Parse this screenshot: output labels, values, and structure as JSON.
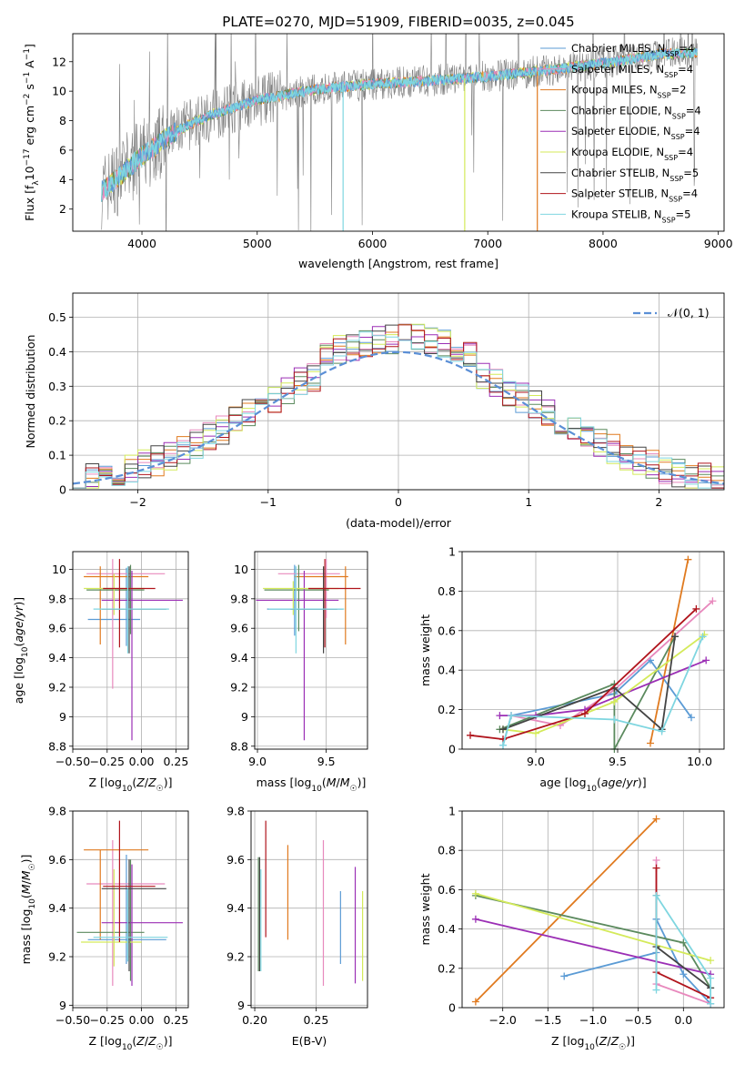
{
  "figure_title": "PLATE=0270, MJD=51909, FIBERID=0035, z=0.045",
  "colors": {
    "ch_miles": "#5b9bd5",
    "sa_miles": "#e889bd",
    "kr_miles": "#e07a1f",
    "ch_elodie": "#5b8a5e",
    "sa_elodie": "#9b2fb5",
    "kr_elodie": "#d4ea5a",
    "ch_stelib": "#444444",
    "sa_stelib": "#b0141c",
    "kr_stelib": "#7fd6e0",
    "gauss": "#5b8fd6",
    "data": "#808080"
  },
  "chart_data": [
    {
      "id": "spectrum",
      "type": "line",
      "title": "PLATE=0270, MJD=51909, FIBERID=0035, z=0.045",
      "xlabel": "wavelength [Angstrom, rest frame]",
      "ylabel": "Flux [f_λ10^-17 erg cm^-2 s^-1 A^-1]",
      "xlim": [
        3400,
        9050
      ],
      "ylim": [
        0.5,
        13.9
      ],
      "xticks": [
        4000,
        5000,
        6000,
        7000,
        8000,
        9000
      ],
      "yticks": [
        2,
        4,
        6,
        8,
        10,
        12
      ],
      "continuum": [
        [
          3650,
          3.2
        ],
        [
          3800,
          4.2
        ],
        [
          4000,
          5.6
        ],
        [
          4300,
          7.3
        ],
        [
          4600,
          8.4
        ],
        [
          5000,
          9.4
        ],
        [
          5500,
          10.1
        ],
        [
          6000,
          10.5
        ],
        [
          6500,
          10.7
        ],
        [
          7000,
          11.0
        ],
        [
          7500,
          11.4
        ],
        [
          8000,
          11.9
        ],
        [
          8500,
          12.5
        ],
        [
          8820,
          12.6
        ]
      ],
      "legend": [
        {
          "label": "Chabrier MILES, N_SSP=4",
          "color_key": "ch_miles"
        },
        {
          "label": "Salpeter MILES, N_SSP=4",
          "color_key": "sa_miles"
        },
        {
          "label": "Kroupa MILES, N_SSP=2",
          "color_key": "kr_miles"
        },
        {
          "label": "Chabrier ELODIE, N_SSP=4",
          "color_key": "ch_elodie"
        },
        {
          "label": "Salpeter ELODIE, N_SSP=4",
          "color_key": "sa_elodie"
        },
        {
          "label": "Kroupa ELODIE, N_SSP=4",
          "color_key": "kr_elodie"
        },
        {
          "label": "Chabrier STELIB, N_SSP=5",
          "color_key": "ch_stelib"
        },
        {
          "label": "Salpeter STELIB, N_SSP=4",
          "color_key": "sa_stelib"
        },
        {
          "label": "Kroupa STELIB, N_SSP=5",
          "color_key": "kr_stelib"
        }
      ]
    },
    {
      "id": "residuals",
      "type": "step-histogram",
      "xlabel": "(data-model)/error",
      "ylabel": "Normed distribution",
      "xlim": [
        -2.5,
        2.5
      ],
      "ylim": [
        0,
        0.57
      ],
      "xticks": [
        -2,
        -1,
        0,
        1,
        2
      ],
      "yticks": [
        0.0,
        0.1,
        0.2,
        0.3,
        0.4,
        0.5
      ],
      "legend_label": "N(0,1)",
      "bin_width": 0.1
    },
    {
      "id": "age_vs_Z",
      "type": "errorbar",
      "xlabel": "Z [log10(Z/Z☉)]",
      "ylabel": "age  [log10(age/yr)]",
      "xlim": [
        -0.5,
        0.34
      ],
      "ylim": [
        8.78,
        10.12
      ],
      "xticks": [
        -0.5,
        -0.25,
        0.0,
        0.25
      ],
      "xticklabels": [
        "−0.50",
        "−0.25",
        "0.00",
        "0.25"
      ],
      "yticks": [
        8.8,
        9.0,
        9.2,
        9.4,
        9.6,
        9.8,
        10.0
      ],
      "points": [
        {
          "c": "ch_miles",
          "x": -0.11,
          "xerr": [
            0.28,
            0.1
          ],
          "y": 9.66,
          "yerr": [
            0.18,
            0.35
          ]
        },
        {
          "c": "sa_miles",
          "x": -0.21,
          "xerr": [
            0.19,
            0.38
          ],
          "y": 9.97,
          "yerr": [
            0.78,
            0.1
          ]
        },
        {
          "c": "kr_miles",
          "x": -0.3,
          "xerr": [
            0.12,
            0.35
          ],
          "y": 9.95,
          "yerr": [
            0.46,
            0.07
          ]
        },
        {
          "c": "ch_elodie",
          "x": -0.08,
          "xerr": [
            0.32,
            0.1
          ],
          "y": 9.86,
          "yerr": [
            0.3,
            0.17
          ]
        },
        {
          "c": "sa_elodie",
          "x": -0.07,
          "xerr": [
            0.22,
            0.37
          ],
          "y": 9.79,
          "yerr": [
            0.95,
            0.2
          ]
        },
        {
          "c": "kr_elodie",
          "x": -0.2,
          "xerr": [
            0.22,
            0.22
          ],
          "y": 9.87,
          "yerr": [
            0.18,
            0.1
          ]
        },
        {
          "c": "ch_stelib",
          "x": -0.09,
          "xerr": [
            0.2,
            0.27
          ],
          "y": 9.73,
          "yerr": [
            0.3,
            0.29
          ]
        },
        {
          "c": "sa_stelib",
          "x": -0.16,
          "xerr": [
            0.12,
            0.26
          ],
          "y": 9.87,
          "yerr": [
            0.4,
            0.2
          ]
        },
        {
          "c": "kr_stelib",
          "x": -0.1,
          "xerr": [
            0.25,
            0.3
          ],
          "y": 9.73,
          "yerr": [
            0.3,
            0.29
          ]
        }
      ]
    },
    {
      "id": "age_vs_mass",
      "type": "errorbar",
      "xlabel": "mass [log10(M/M☉)]",
      "ylabel": "",
      "xlim": [
        8.98,
        9.8
      ],
      "ylim": [
        8.78,
        10.12
      ],
      "xticks": [
        9.0,
        9.5
      ],
      "xticklabels": [
        "9.0",
        "9.5"
      ],
      "yticks": [
        8.8,
        9.0,
        9.2,
        9.4,
        9.6,
        9.8,
        10.0
      ],
      "points": [
        {
          "c": "ch_miles",
          "x": 9.27,
          "xerr": [
            0.2,
            0.35
          ],
          "y": 9.73,
          "yerr": [
            0.18,
            0.3
          ]
        },
        {
          "c": "sa_miles",
          "x": 9.5,
          "xerr": [
            0.35,
            0.1
          ],
          "y": 9.97,
          "yerr": [
            0.3,
            0.1
          ]
        },
        {
          "c": "kr_miles",
          "x": 9.64,
          "xerr": [
            0.37,
            0.02
          ],
          "y": 9.95,
          "yerr": [
            0.46,
            0.07
          ]
        },
        {
          "c": "ch_elodie",
          "x": 9.3,
          "xerr": [
            0.25,
            0.22
          ],
          "y": 9.86,
          "yerr": [
            0.28,
            0.17
          ]
        },
        {
          "c": "sa_elodie",
          "x": 9.34,
          "xerr": [
            0.35,
            0.25
          ],
          "y": 9.79,
          "yerr": [
            0.95,
            0.2
          ]
        },
        {
          "c": "kr_elodie",
          "x": 9.26,
          "xerr": [
            0.22,
            0.33
          ],
          "y": 9.87,
          "yerr": [
            0.18,
            0.05
          ]
        },
        {
          "c": "ch_stelib",
          "x": 9.48,
          "xerr": [
            0.24,
            0.1
          ],
          "y": 9.73,
          "yerr": [
            0.3,
            0.29
          ]
        },
        {
          "c": "sa_stelib",
          "x": 9.49,
          "xerr": [
            0.12,
            0.26
          ],
          "y": 9.87,
          "yerr": [
            0.4,
            0.2
          ]
        },
        {
          "c": "kr_stelib",
          "x": 9.28,
          "xerr": [
            0.2,
            0.35
          ],
          "y": 9.73,
          "yerr": [
            0.3,
            0.29
          ]
        }
      ]
    },
    {
      "id": "weight_vs_age",
      "type": "line",
      "xlabel": "age  [log10(age/yr)]",
      "ylabel": "mass weight",
      "xlim": [
        8.55,
        10.15
      ],
      "ylim": [
        0,
        1
      ],
      "xticks": [
        9.0,
        9.5,
        10.0
      ],
      "xticklabels": [
        "9.0",
        "9.5",
        "10.0"
      ],
      "yticks": [
        0.0,
        0.2,
        0.4,
        0.6,
        0.8,
        1.0
      ],
      "series": [
        {
          "c": "ch_miles",
          "x": [
            8.8,
            8.85,
            9.48,
            9.7,
            9.95
          ],
          "y": [
            0.02,
            0.17,
            0.28,
            0.45,
            0.16
          ]
        },
        {
          "c": "sa_miles",
          "x": [
            8.85,
            9.15,
            9.48,
            10.08
          ],
          "y": [
            0.17,
            0.12,
            0.3,
            0.75
          ]
        },
        {
          "c": "kr_miles",
          "x": [
            9.7,
            9.93
          ],
          "y": [
            0.03,
            0.96
          ]
        },
        {
          "c": "ch_elodie",
          "x": [
            8.78,
            9.48,
            9.48,
            9.85
          ],
          "y": [
            0.1,
            0.33,
            0.0,
            0.57
          ]
        },
        {
          "c": "sa_elodie",
          "x": [
            8.78,
            9.0,
            9.3,
            10.04
          ],
          "y": [
            0.17,
            0.17,
            0.2,
            0.45
          ]
        },
        {
          "c": "kr_elodie",
          "x": [
            8.8,
            9.0,
            9.48,
            10.03
          ],
          "y": [
            0.1,
            0.08,
            0.24,
            0.58
          ]
        },
        {
          "c": "ch_stelib",
          "x": [
            8.8,
            9.48,
            9.77,
            9.85
          ],
          "y": [
            0.1,
            0.31,
            0.1,
            0.57
          ]
        },
        {
          "c": "sa_stelib",
          "x": [
            8.6,
            8.8,
            9.3,
            9.98
          ],
          "y": [
            0.07,
            0.05,
            0.18,
            0.71
          ]
        },
        {
          "c": "kr_stelib",
          "x": [
            8.8,
            8.85,
            9.48,
            9.77,
            10.02
          ],
          "y": [
            0.02,
            0.17,
            0.15,
            0.09,
            0.57
          ]
        }
      ]
    },
    {
      "id": "mass_vs_Z",
      "type": "errorbar",
      "xlabel": "Z [log10(Z/Z☉)]",
      "ylabel": "mass [log10(M/M☉)]",
      "xlim": [
        -0.5,
        0.34
      ],
      "ylim": [
        8.99,
        9.8
      ],
      "xticks": [
        -0.5,
        -0.25,
        0.0,
        0.25
      ],
      "xticklabels": [
        "−0.50",
        "−0.25",
        "0.00",
        "0.25"
      ],
      "yticks": [
        9.0,
        9.2,
        9.4,
        9.6,
        9.8
      ],
      "points": [
        {
          "c": "ch_miles",
          "x": -0.11,
          "xerr": [
            0.28,
            0.29
          ],
          "y": 9.27,
          "yerr": [
            0.1,
            0.35
          ]
        },
        {
          "c": "sa_miles",
          "x": -0.21,
          "xerr": [
            0.19,
            0.38
          ],
          "y": 9.5,
          "yerr": [
            0.42,
            0.18
          ]
        },
        {
          "c": "kr_miles",
          "x": -0.3,
          "xerr": [
            0.12,
            0.35
          ],
          "y": 9.64,
          "yerr": [
            0.37,
            0.0
          ]
        },
        {
          "c": "ch_elodie",
          "x": -0.08,
          "xerr": [
            0.39,
            0.1
          ],
          "y": 9.3,
          "yerr": [
            0.2,
            0.3
          ]
        },
        {
          "c": "sa_elodie",
          "x": -0.07,
          "xerr": [
            0.22,
            0.37
          ],
          "y": 9.34,
          "yerr": [
            0.26,
            0.24
          ]
        },
        {
          "c": "kr_elodie",
          "x": -0.2,
          "xerr": [
            0.24,
            0.2
          ],
          "y": 9.26,
          "yerr": [
            0.1,
            0.3
          ]
        },
        {
          "c": "ch_stelib",
          "x": -0.09,
          "xerr": [
            0.2,
            0.27
          ],
          "y": 9.48,
          "yerr": [
            0.34,
            0.12
          ]
        },
        {
          "c": "sa_stelib",
          "x": -0.16,
          "xerr": [
            0.12,
            0.26
          ],
          "y": 9.49,
          "yerr": [
            0.23,
            0.27
          ]
        },
        {
          "c": "kr_stelib",
          "x": -0.1,
          "xerr": [
            0.25,
            0.29
          ],
          "y": 9.28,
          "yerr": [
            0.1,
            0.2
          ]
        }
      ]
    },
    {
      "id": "mass_vs_ebv",
      "type": "errorbar",
      "xlabel": "E(B-V)",
      "ylabel": "",
      "xlim": [
        0.197,
        0.292
      ],
      "ylim": [
        8.99,
        9.8
      ],
      "xticks": [
        0.2,
        0.25
      ],
      "xticklabels": [
        "0.20",
        "0.25"
      ],
      "yticks": [
        9.0,
        9.2,
        9.4,
        9.6,
        9.8
      ],
      "points": [
        {
          "c": "ch_miles",
          "x": 0.27,
          "xerr": [
            0,
            0
          ],
          "y": 9.3,
          "yerr": [
            0.13,
            0.17
          ]
        },
        {
          "c": "sa_miles",
          "x": 0.256,
          "xerr": [
            0,
            0
          ],
          "y": 9.38,
          "yerr": [
            0.3,
            0.3
          ]
        },
        {
          "c": "kr_miles",
          "x": 0.227,
          "xerr": [
            0,
            0
          ],
          "y": 9.45,
          "yerr": [
            0.18,
            0.21
          ]
        },
        {
          "c": "ch_elodie",
          "x": 0.203,
          "xerr": [
            0,
            0
          ],
          "y": 9.38,
          "yerr": [
            0.24,
            0.23
          ]
        },
        {
          "c": "sa_elodie",
          "x": 0.282,
          "xerr": [
            0,
            0
          ],
          "y": 9.33,
          "yerr": [
            0.24,
            0.24
          ]
        },
        {
          "c": "kr_elodie",
          "x": 0.288,
          "xerr": [
            0,
            0
          ],
          "y": 9.29,
          "yerr": [
            0.19,
            0.18
          ]
        },
        {
          "c": "ch_stelib",
          "x": 0.204,
          "xerr": [
            0,
            0
          ],
          "y": 9.38,
          "yerr": [
            0.24,
            0.23
          ]
        },
        {
          "c": "sa_stelib",
          "x": 0.209,
          "xerr": [
            0,
            0
          ],
          "y": 9.52,
          "yerr": [
            0.24,
            0.24
          ]
        },
        {
          "c": "kr_stelib",
          "x": 0.205,
          "xerr": [
            0,
            0
          ],
          "y": 9.35,
          "yerr": [
            0.21,
            0.21
          ]
        }
      ]
    },
    {
      "id": "weight_vs_Z",
      "type": "line",
      "xlabel": "Z [log10(Z/Z☉)]",
      "ylabel": "mass weight",
      "xlim": [
        -2.45,
        0.45
      ],
      "ylim": [
        0,
        1
      ],
      "xticks": [
        -2.0,
        -1.5,
        -1.0,
        -0.5,
        0.0
      ],
      "xticklabels": [
        "−2.0",
        "−1.5",
        "−1.0",
        "−0.5",
        "0.0"
      ],
      "yticks": [
        0.0,
        0.2,
        0.4,
        0.6,
        0.8,
        1.0
      ],
      "series": [
        {
          "c": "ch_miles",
          "x": [
            -1.32,
            -0.3,
            -0.3,
            0.0,
            0.3
          ],
          "y": [
            0.16,
            0.28,
            0.45,
            0.17,
            0.02
          ]
        },
        {
          "c": "sa_miles",
          "x": [
            -0.3,
            -0.3,
            0.3
          ],
          "y": [
            0.75,
            0.12,
            0.02
          ]
        },
        {
          "c": "kr_miles",
          "x": [
            -2.3,
            -0.3
          ],
          "y": [
            0.03,
            0.96
          ]
        },
        {
          "c": "ch_elodie",
          "x": [
            -2.3,
            0.0,
            0.3
          ],
          "y": [
            0.57,
            0.33,
            0.1
          ]
        },
        {
          "c": "sa_elodie",
          "x": [
            -2.3,
            0.3
          ],
          "y": [
            0.45,
            0.17
          ]
        },
        {
          "c": "kr_elodie",
          "x": [
            -2.3,
            0.3
          ],
          "y": [
            0.58,
            0.24
          ]
        },
        {
          "c": "ch_stelib",
          "x": [
            -0.3,
            -0.3,
            0.3
          ],
          "y": [
            0.57,
            0.31,
            0.1
          ]
        },
        {
          "c": "sa_stelib",
          "x": [
            -0.3,
            -0.3,
            0.3
          ],
          "y": [
            0.71,
            0.18,
            0.05
          ]
        },
        {
          "c": "kr_stelib",
          "x": [
            -0.3,
            -0.3,
            0.3,
            0.3
          ],
          "y": [
            0.09,
            0.57,
            0.15,
            0.02
          ]
        }
      ]
    }
  ]
}
